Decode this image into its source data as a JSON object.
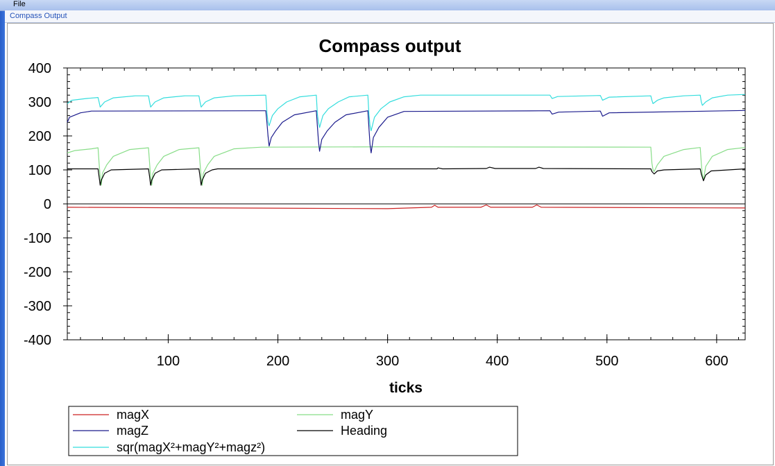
{
  "window": {
    "menu": [
      "File"
    ],
    "tab_label": "Compass Output"
  },
  "chart_data": {
    "type": "line",
    "title": "Compass output",
    "xlabel": "ticks",
    "ylabel": "",
    "xlim": [
      8,
      626
    ],
    "ylim": [
      -400,
      400
    ],
    "xticks": [
      100,
      200,
      300,
      400,
      500,
      600
    ],
    "yticks": [
      -400,
      -300,
      -200,
      -100,
      0,
      100,
      200,
      300,
      400
    ],
    "grid": false,
    "legend_position": "bottom-left",
    "legend": [
      "magX",
      "magY",
      "magZ",
      "Heading",
      "sqr(magX²+magY²+magz²)"
    ],
    "series": [
      {
        "name": "magX",
        "color": "#cc2222",
        "points": [
          [
            8,
            -10
          ],
          [
            150,
            -12
          ],
          [
            300,
            -14
          ],
          [
            340,
            -10
          ],
          [
            343,
            -4
          ],
          [
            346,
            -10
          ],
          [
            385,
            -10
          ],
          [
            390,
            -3
          ],
          [
            394,
            -10
          ],
          [
            432,
            -10
          ],
          [
            436,
            -3
          ],
          [
            440,
            -10
          ],
          [
            626,
            -12
          ]
        ]
      },
      {
        "name": "magY",
        "color": "#88dd88",
        "points": [
          [
            8,
            150
          ],
          [
            15,
            157
          ],
          [
            30,
            162
          ],
          [
            36,
            165
          ],
          [
            37,
            120
          ],
          [
            38,
            80
          ],
          [
            39,
            55
          ],
          [
            40,
            90
          ],
          [
            44,
            115
          ],
          [
            50,
            140
          ],
          [
            65,
            160
          ],
          [
            82,
            165
          ],
          [
            83,
            120
          ],
          [
            84,
            80
          ],
          [
            85,
            55
          ],
          [
            86,
            90
          ],
          [
            90,
            115
          ],
          [
            96,
            140
          ],
          [
            110,
            160
          ],
          [
            128,
            165
          ],
          [
            129,
            120
          ],
          [
            130,
            80
          ],
          [
            131,
            55
          ],
          [
            132,
            90
          ],
          [
            136,
            115
          ],
          [
            142,
            140
          ],
          [
            160,
            162
          ],
          [
            185,
            167
          ],
          [
            300,
            168
          ],
          [
            540,
            167
          ],
          [
            541,
            120
          ],
          [
            542,
            100
          ],
          [
            543,
            95
          ],
          [
            546,
            115
          ],
          [
            552,
            140
          ],
          [
            570,
            160
          ],
          [
            585,
            166
          ],
          [
            586,
            120
          ],
          [
            587,
            85
          ],
          [
            588,
            70
          ],
          [
            590,
            110
          ],
          [
            596,
            140
          ],
          [
            610,
            160
          ],
          [
            626,
            166
          ]
        ]
      },
      {
        "name": "magZ",
        "color": "#1a1a8c",
        "points": [
          [
            8,
            240
          ],
          [
            10,
            255
          ],
          [
            20,
            268
          ],
          [
            30,
            273
          ],
          [
            189,
            274
          ],
          [
            190,
            240
          ],
          [
            191,
            200
          ],
          [
            192,
            170
          ],
          [
            194,
            195
          ],
          [
            198,
            215
          ],
          [
            204,
            240
          ],
          [
            215,
            262
          ],
          [
            235,
            274
          ],
          [
            236,
            230
          ],
          [
            237,
            185
          ],
          [
            238,
            155
          ],
          [
            240,
            190
          ],
          [
            245,
            215
          ],
          [
            252,
            240
          ],
          [
            262,
            262
          ],
          [
            282,
            274
          ],
          [
            283,
            225
          ],
          [
            284,
            175
          ],
          [
            285,
            150
          ],
          [
            287,
            195
          ],
          [
            292,
            225
          ],
          [
            300,
            255
          ],
          [
            315,
            272
          ],
          [
            448,
            274
          ],
          [
            450,
            264
          ],
          [
            456,
            270
          ],
          [
            494,
            273
          ],
          [
            496,
            258
          ],
          [
            502,
            268
          ],
          [
            626,
            275
          ]
        ]
      },
      {
        "name": "Heading",
        "color": "#000000",
        "points": [
          [
            8,
            103
          ],
          [
            36,
            103
          ],
          [
            37,
            80
          ],
          [
            38,
            55
          ],
          [
            39,
            70
          ],
          [
            42,
            90
          ],
          [
            48,
            100
          ],
          [
            82,
            103
          ],
          [
            83,
            80
          ],
          [
            84,
            55
          ],
          [
            85,
            70
          ],
          [
            88,
            90
          ],
          [
            94,
            100
          ],
          [
            128,
            103
          ],
          [
            129,
            80
          ],
          [
            130,
            55
          ],
          [
            131,
            70
          ],
          [
            134,
            90
          ],
          [
            140,
            100
          ],
          [
            145,
            103
          ],
          [
            345,
            103
          ],
          [
            346,
            106
          ],
          [
            350,
            103
          ],
          [
            390,
            104
          ],
          [
            393,
            108
          ],
          [
            398,
            104
          ],
          [
            435,
            104
          ],
          [
            438,
            108
          ],
          [
            442,
            104
          ],
          [
            540,
            103
          ],
          [
            541,
            95
          ],
          [
            543,
            88
          ],
          [
            546,
            97
          ],
          [
            552,
            100
          ],
          [
            585,
            103
          ],
          [
            586,
            88
          ],
          [
            588,
            68
          ],
          [
            590,
            85
          ],
          [
            595,
            97
          ],
          [
            626,
            103
          ]
        ]
      },
      {
        "name": "sqr(magX²+magY²+magz²)",
        "color": "#33dddd",
        "points": [
          [
            8,
            295
          ],
          [
            12,
            305
          ],
          [
            25,
            310
          ],
          [
            36,
            313
          ],
          [
            37,
            300
          ],
          [
            38,
            285
          ],
          [
            42,
            300
          ],
          [
            50,
            312
          ],
          [
            70,
            318
          ],
          [
            82,
            318
          ],
          [
            83,
            300
          ],
          [
            84,
            285
          ],
          [
            88,
            300
          ],
          [
            96,
            312
          ],
          [
            115,
            318
          ],
          [
            128,
            318
          ],
          [
            129,
            300
          ],
          [
            130,
            285
          ],
          [
            134,
            300
          ],
          [
            142,
            312
          ],
          [
            160,
            318
          ],
          [
            189,
            320
          ],
          [
            190,
            270
          ],
          [
            191,
            240
          ],
          [
            192,
            230
          ],
          [
            195,
            260
          ],
          [
            200,
            280
          ],
          [
            208,
            300
          ],
          [
            220,
            315
          ],
          [
            235,
            320
          ],
          [
            236,
            265
          ],
          [
            237,
            240
          ],
          [
            238,
            225
          ],
          [
            241,
            260
          ],
          [
            246,
            280
          ],
          [
            255,
            300
          ],
          [
            265,
            315
          ],
          [
            282,
            320
          ],
          [
            283,
            265
          ],
          [
            284,
            230
          ],
          [
            285,
            215
          ],
          [
            288,
            255
          ],
          [
            294,
            280
          ],
          [
            302,
            300
          ],
          [
            315,
            315
          ],
          [
            330,
            320
          ],
          [
            448,
            320
          ],
          [
            450,
            310
          ],
          [
            455,
            316
          ],
          [
            494,
            319
          ],
          [
            496,
            305
          ],
          [
            502,
            314
          ],
          [
            540,
            318
          ],
          [
            541,
            305
          ],
          [
            542,
            295
          ],
          [
            546,
            305
          ],
          [
            552,
            312
          ],
          [
            570,
            318
          ],
          [
            585,
            320
          ],
          [
            586,
            300
          ],
          [
            587,
            290
          ],
          [
            590,
            300
          ],
          [
            596,
            312
          ],
          [
            610,
            320
          ],
          [
            626,
            322
          ]
        ]
      }
    ]
  }
}
